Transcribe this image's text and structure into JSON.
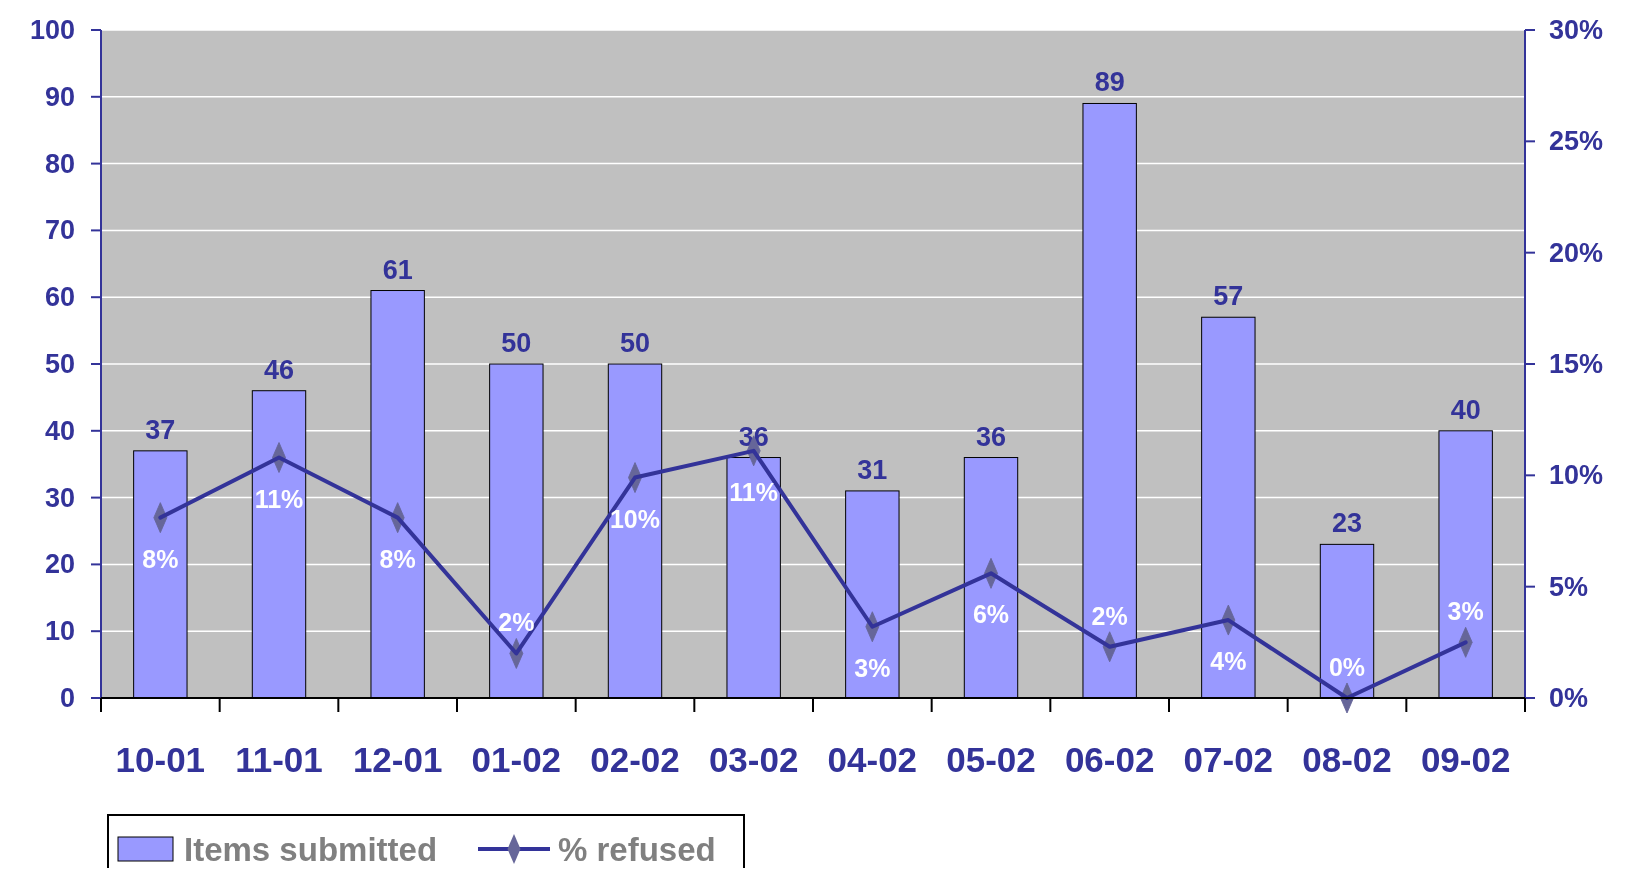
{
  "chart_data": {
    "type": "bar",
    "categories": [
      "10-01",
      "11-01",
      "12-01",
      "01-02",
      "02-02",
      "03-02",
      "04-02",
      "05-02",
      "06-02",
      "07-02",
      "08-02",
      "09-02"
    ],
    "series": [
      {
        "name": "Items submitted",
        "color": "#9999ff",
        "values": [
          37,
          46,
          61,
          50,
          50,
          36,
          31,
          36,
          89,
          57,
          23,
          40
        ],
        "value_labels": [
          "37",
          "46",
          "61",
          "50",
          "50",
          "36",
          "31",
          "36",
          "89",
          "57",
          "23",
          "40"
        ]
      },
      {
        "name": "% refused",
        "type": "line",
        "axis": "y2",
        "color": "#333399",
        "marker": "diamond",
        "values": [
          8.1,
          10.8,
          8.1,
          2.0,
          9.9,
          11.1,
          3.2,
          5.6,
          2.3,
          3.5,
          0,
          2.5
        ],
        "value_labels": [
          "8%",
          "11%",
          "8%",
          "2%",
          "10%",
          "11%",
          "3%",
          "6%",
          "2%",
          "4%",
          "0%",
          "3%"
        ]
      }
    ],
    "ylim": [
      0,
      100
    ],
    "yticks": [
      0,
      10,
      20,
      30,
      40,
      50,
      60,
      70,
      80,
      90,
      100
    ],
    "y2lim": [
      0,
      30
    ],
    "y2ticks": [
      {
        "value": 0,
        "label": "0%"
      },
      {
        "value": 5,
        "label": "5%"
      },
      {
        "value": 10,
        "label": "10%"
      },
      {
        "value": 15,
        "label": "15%"
      },
      {
        "value": 20,
        "label": "20%"
      },
      {
        "value": 25,
        "label": "25%"
      },
      {
        "value": 30,
        "label": "30%"
      }
    ],
    "grid": "y",
    "legend": "bottom left"
  }
}
